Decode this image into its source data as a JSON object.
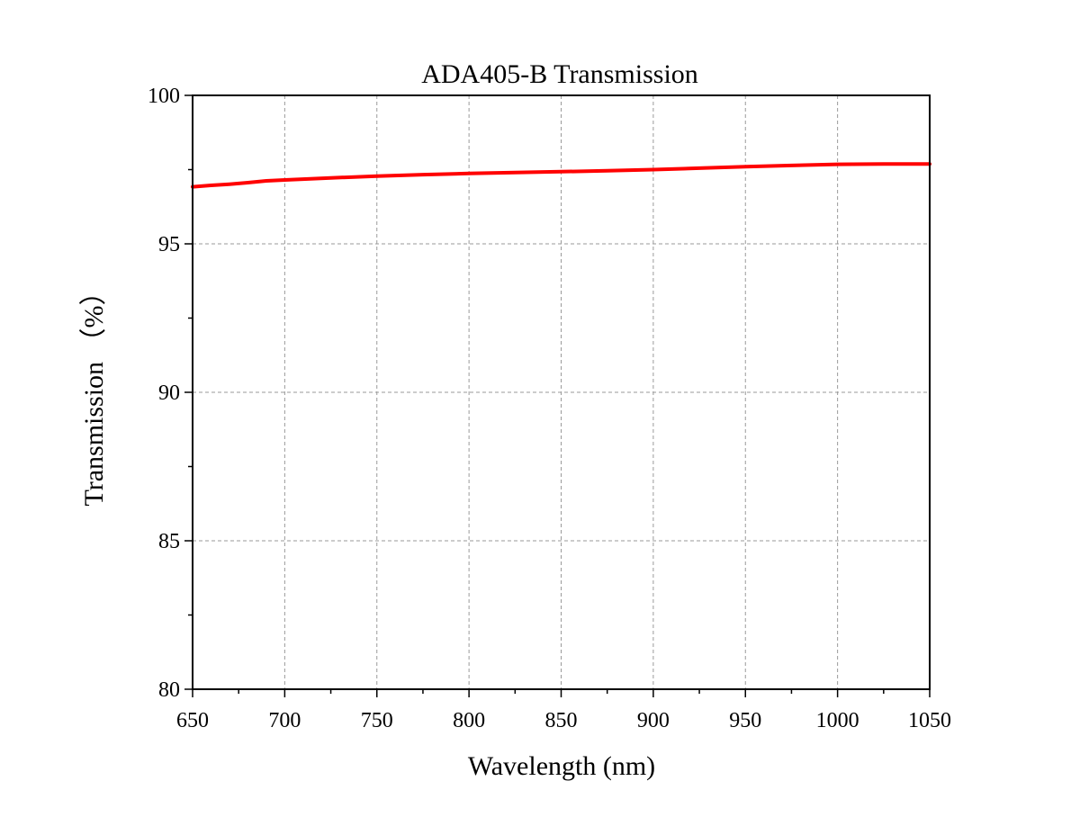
{
  "chart_data": {
    "type": "line",
    "title": "ADA405-B Transmission",
    "xlabel": "Wavelength (nm)",
    "ylabel": "Transmission （%）",
    "xlim": [
      650,
      1050
    ],
    "ylim": [
      80,
      100
    ],
    "xticks": [
      650,
      700,
      750,
      800,
      850,
      900,
      950,
      1000,
      1050
    ],
    "yticks": [
      80,
      85,
      90,
      95,
      100
    ],
    "x_minor_step": 25,
    "y_minor_step": 2.5,
    "grid": true,
    "line_color": "#ff0000",
    "series": [
      {
        "x": [
          650,
          660,
          670,
          680,
          690,
          700,
          725,
          750,
          775,
          800,
          825,
          850,
          875,
          900,
          925,
          950,
          975,
          1000,
          1025,
          1050
        ],
        "values": [
          96.92,
          96.97,
          97.01,
          97.06,
          97.12,
          97.15,
          97.22,
          97.28,
          97.33,
          97.37,
          97.4,
          97.43,
          97.46,
          97.5,
          97.55,
          97.6,
          97.64,
          97.68,
          97.69,
          97.69
        ]
      }
    ]
  }
}
